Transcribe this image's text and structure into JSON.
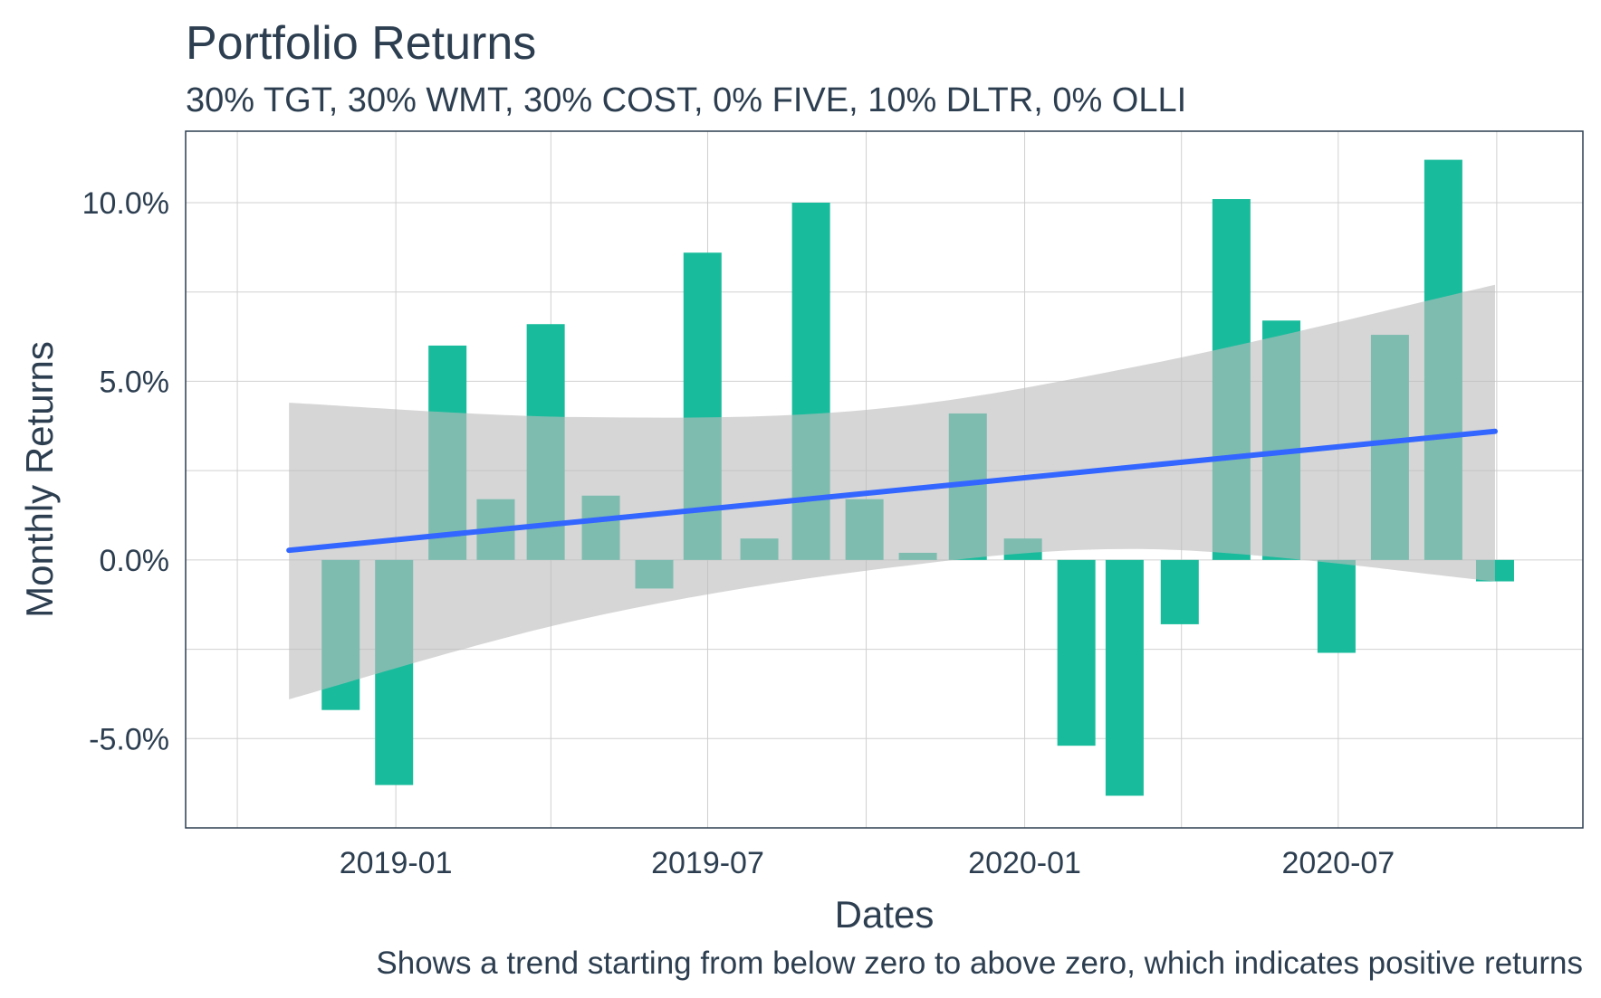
{
  "chart_data": {
    "type": "bar",
    "title": "Portfolio Returns",
    "subtitle": "30% TGT, 30% WMT, 30% COST, 0% FIVE, 10% DLTR, 0% OLLI",
    "caption": "Shows a trend starting from below zero to above zero, which indicates positive returns",
    "xlabel": "Dates",
    "ylabel": "Monthly Returns",
    "x_ticks": [
      "2019-01",
      "2019-07",
      "2020-01",
      "2020-07"
    ],
    "y_ticks": [
      -5.0,
      0.0,
      5.0,
      10.0
    ],
    "y_tick_labels": [
      "-5.0%",
      "0.0%",
      "5.0%",
      "10.0%"
    ],
    "ylim": [
      -7.5,
      12.0
    ],
    "xlim": [
      "2018-09-01",
      "2020-11-20"
    ],
    "grid": true,
    "x": [
      "2018-11-30",
      "2018-12-31",
      "2019-01-31",
      "2019-02-28",
      "2019-03-29",
      "2019-04-30",
      "2019-05-31",
      "2019-06-28",
      "2019-07-31",
      "2019-08-30",
      "2019-09-30",
      "2019-10-31",
      "2019-11-29",
      "2019-12-31",
      "2020-01-31",
      "2020-02-28",
      "2020-03-31",
      "2020-04-30",
      "2020-05-29",
      "2020-06-30",
      "2020-07-31",
      "2020-08-31",
      "2020-09-30"
    ],
    "values": [
      -4.2,
      -6.3,
      6.0,
      1.7,
      6.6,
      1.8,
      -0.8,
      8.6,
      0.6,
      10.0,
      1.7,
      0.2,
      4.1,
      0.6,
      -5.2,
      -6.6,
      -1.8,
      10.1,
      6.7,
      -2.6,
      6.3,
      11.2,
      -0.6
    ],
    "bar_color": "#18bc9c",
    "trend": {
      "method": "lm",
      "color": "#3366ff",
      "band_color": "#bdbdbd",
      "points": [
        {
          "x": "2018-10-31",
          "y": 0.27,
          "lower": -3.9,
          "upper": 4.4
        },
        {
          "x": "2019-04-15",
          "y": 1.15,
          "lower": -1.7,
          "upper": 4.0
        },
        {
          "x": "2019-10-01",
          "y": 2.0,
          "lower": -0.3,
          "upper": 4.2
        },
        {
          "x": "2020-03-15",
          "y": 2.8,
          "lower": 0.3,
          "upper": 5.5
        },
        {
          "x": "2020-09-30",
          "y": 3.6,
          "lower": -0.6,
          "upper": 7.7
        }
      ]
    }
  }
}
